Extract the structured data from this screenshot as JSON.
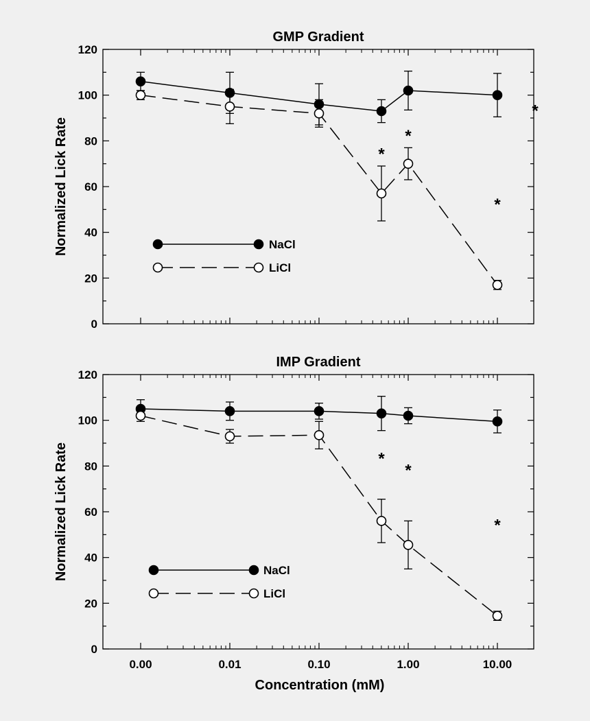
{
  "chart_data": [
    {
      "type": "line",
      "title": "GMP Gradient",
      "xlabel": "",
      "ylabel": "Normalized Lick Rate",
      "x_categories": [
        "0.00",
        "0.01",
        "0.10",
        "1.00",
        "10.00"
      ],
      "x_scale": "log-like categorical (extra point at 0.5)",
      "ylim": [
        0,
        120
      ],
      "yticks": [
        0,
        20,
        40,
        60,
        80,
        100,
        120
      ],
      "legend": {
        "placement": "lower-left",
        "entries": [
          "NaCl",
          "LiCl"
        ]
      },
      "series": [
        {
          "name": "NaCl",
          "marker": "filled-circle",
          "line": "solid",
          "x": [
            0.0,
            0.01,
            0.1,
            0.5,
            1.0,
            10.0
          ],
          "y": [
            106,
            101,
            96,
            93,
            102,
            100
          ],
          "err": [
            4,
            9,
            9,
            5,
            8.5,
            9.5
          ]
        },
        {
          "name": "LiCl",
          "marker": "open-circle",
          "line": "dashed",
          "x": [
            0.0,
            0.01,
            0.1,
            0.5,
            1.0,
            10.0
          ],
          "y": [
            100,
            95,
            92,
            57,
            70,
            17
          ],
          "err": [
            2,
            7.5,
            6,
            12,
            7,
            2
          ]
        }
      ],
      "annotations": [
        {
          "text": "*",
          "x": 0.5,
          "y": 76
        },
        {
          "text": "*",
          "x": 1.0,
          "y": 84
        },
        {
          "text": "*",
          "x": 10.0,
          "y": 54
        },
        {
          "text": "*",
          "x": "right-edge",
          "y": 95
        }
      ]
    },
    {
      "type": "line",
      "title": "IMP Gradient",
      "xlabel": "Concentration (mM)",
      "ylabel": "Normalized Lick Rate",
      "x_categories": [
        "0.00",
        "0.01",
        "0.10",
        "1.00",
        "10.00"
      ],
      "x_scale": "log-like categorical (extra point at 0.5)",
      "ylim": [
        0,
        120
      ],
      "yticks": [
        0,
        20,
        40,
        60,
        80,
        100,
        120
      ],
      "legend": {
        "placement": "lower-left",
        "entries": [
          "NaCl",
          "LiCl"
        ]
      },
      "series": [
        {
          "name": "NaCl",
          "marker": "filled-circle",
          "line": "solid",
          "x": [
            0.0,
            0.01,
            0.1,
            0.5,
            1.0,
            10.0
          ],
          "y": [
            105,
            104,
            104,
            103,
            102,
            99.5
          ],
          "err": [
            4,
            4,
            3.5,
            7.5,
            3.5,
            5
          ]
        },
        {
          "name": "LiCl",
          "marker": "open-circle",
          "line": "dashed",
          "x": [
            0.0,
            0.01,
            0.1,
            0.5,
            1.0,
            10.0
          ],
          "y": [
            102,
            93,
            93.5,
            56,
            45.5,
            14.5
          ],
          "err": [
            2.5,
            3,
            6,
            9.5,
            10.5,
            2
          ]
        }
      ],
      "annotations": [
        {
          "text": "*",
          "x": 0.5,
          "y": 85
        },
        {
          "text": "*",
          "x": 1.0,
          "y": 80
        },
        {
          "text": "*",
          "x": 10.0,
          "y": 56
        }
      ]
    }
  ]
}
